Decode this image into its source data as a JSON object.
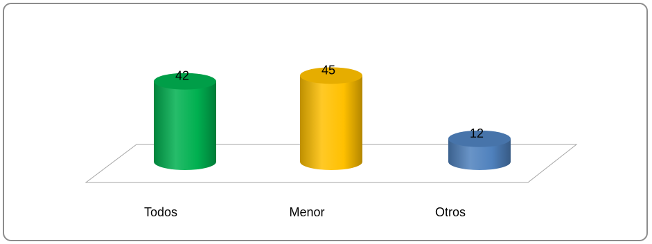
{
  "chart_data": {
    "type": "bar",
    "categories": [
      "Todos",
      "Menor",
      "Otros"
    ],
    "values": [
      42,
      45,
      12
    ],
    "data_labels": [
      "42",
      "45",
      "12"
    ],
    "title": "",
    "xlabel": "",
    "ylabel": "",
    "ylim": [
      0,
      50
    ],
    "grid": false,
    "legend": "none",
    "bar_style": "3d-cylinder",
    "colors": [
      "#00b050",
      "#ffc000",
      "#4f81bd"
    ]
  }
}
